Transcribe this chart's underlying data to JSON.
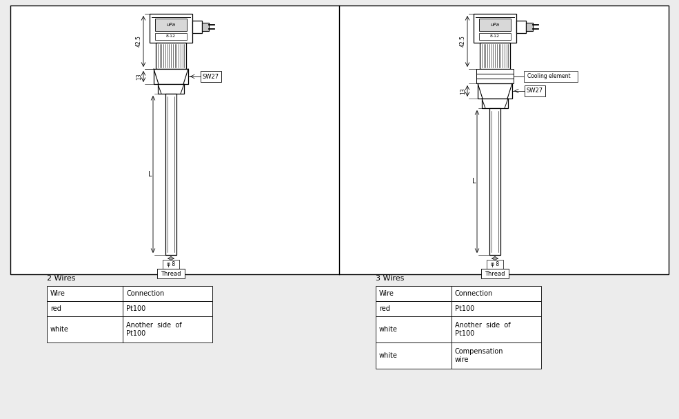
{
  "bg_color": "#ececec",
  "diagram_bg": "#ffffff",
  "line_color": "#000000",
  "table1_title": "2 Wires",
  "table1_cols": [
    "Wire",
    "Connection"
  ],
  "table1_rows": [
    [
      "red",
      "Pt100"
    ],
    [
      "white",
      "Another  side  of\nPt100"
    ]
  ],
  "table2_title": "3 Wires",
  "table2_cols": [
    "Wire",
    "Connection"
  ],
  "table2_rows": [
    [
      "red",
      "Pt100"
    ],
    [
      "white",
      "Another  side  of\nPt100"
    ],
    [
      "white",
      "Compensation\nwire"
    ]
  ],
  "dim_42_5": "42.5",
  "dim_13": "13",
  "dim_L": "L",
  "dim_phi8": "φ 8",
  "dim_thread": "Thread",
  "dim_SW27": "SW27",
  "cooling": "Cooling element"
}
